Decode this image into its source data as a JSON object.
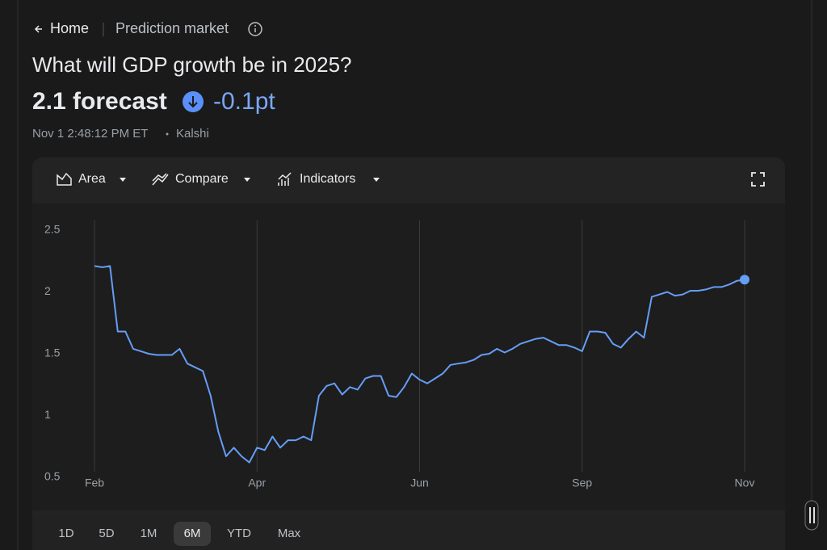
{
  "nav": {
    "back": "Home",
    "section": "Prediction market"
  },
  "header": {
    "title": "What will GDP growth be in 2025?",
    "forecast": "2.1 forecast",
    "change": "-0.1pt",
    "timestamp": "Nov 1 2:48:12 PM ET",
    "source": "Kalshi"
  },
  "toolbar": [
    "Area",
    "Compare",
    "Indicators"
  ],
  "ranges": {
    "options": [
      "1D",
      "5D",
      "1M",
      "6M",
      "YTD",
      "Max"
    ],
    "selected": 3
  },
  "chart_data": {
    "type": "line",
    "x_labels": [
      "Feb",
      "Apr",
      "Jun",
      "Sep",
      "Nov"
    ],
    "ylim": [
      0.5,
      2.5
    ],
    "yticks": [
      2.5,
      2,
      1.5,
      1,
      0.5
    ],
    "series": [
      {
        "color": "#669df6",
        "values": [
          2.21,
          2.2,
          2.21,
          1.68,
          1.68,
          1.54,
          1.52,
          1.5,
          1.49,
          1.49,
          1.49,
          1.54,
          1.42,
          1.39,
          1.36,
          1.16,
          0.87,
          0.67,
          0.74,
          0.67,
          0.62,
          0.74,
          0.72,
          0.83,
          0.74,
          0.8,
          0.8,
          0.83,
          0.8,
          1.16,
          1.24,
          1.26,
          1.17,
          1.23,
          1.21,
          1.3,
          1.32,
          1.32,
          1.16,
          1.15,
          1.23,
          1.34,
          1.29,
          1.26,
          1.3,
          1.34,
          1.41,
          1.42,
          1.43,
          1.45,
          1.49,
          1.5,
          1.54,
          1.51,
          1.54,
          1.58,
          1.6,
          1.62,
          1.63,
          1.6,
          1.57,
          1.57,
          1.55,
          1.52,
          1.68,
          1.68,
          1.67,
          1.58,
          1.55,
          1.62,
          1.68,
          1.63,
          1.96,
          1.98,
          2.0,
          1.97,
          1.98,
          2.01,
          2.01,
          2.02,
          2.04,
          2.04,
          2.06,
          2.09,
          2.1
        ]
      }
    ]
  }
}
